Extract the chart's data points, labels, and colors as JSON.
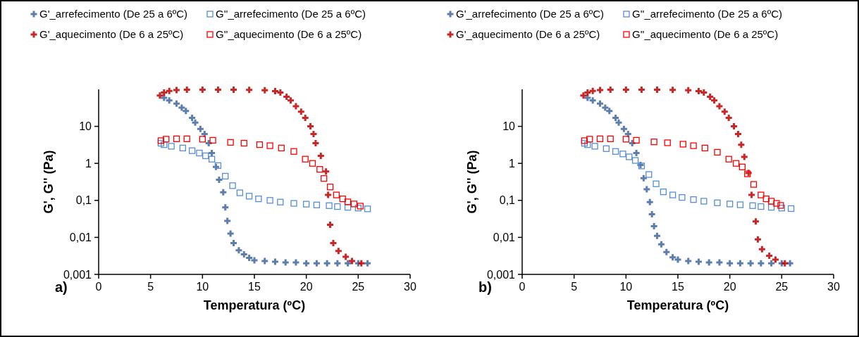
{
  "chart_data": [
    {
      "type": "scatter",
      "xlabel": "Temperatura (ºC)",
      "ylabel": "G', G'' (Pa)",
      "log": "y",
      "xlim": [
        0,
        30
      ],
      "xticks": [
        0,
        5,
        10,
        15,
        20,
        25,
        30
      ],
      "ylim": [
        0.001,
        100
      ],
      "yticks": [
        {
          "value": 0.001,
          "label": "0,001"
        },
        {
          "value": 0.01,
          "label": "0,01"
        },
        {
          "value": 0.1,
          "label": "0,1"
        },
        {
          "value": 1,
          "label": "1"
        },
        {
          "value": 10,
          "label": "10"
        }
      ],
      "grid": false,
      "legend": "top",
      "annotations": [
        "a)"
      ],
      "series": [
        {
          "name": "G'_arrefecimento (De 25 a 6ºC)",
          "color": "#41679f",
          "marker": "cross",
          "x": [
            6.3,
            6.8,
            7.5,
            8.0,
            8.4,
            9.0,
            9.3,
            9.8,
            10.2,
            10.6,
            10.9,
            11.3,
            11.6,
            12.0,
            12.2,
            12.4,
            12.7,
            13.0,
            13.5,
            14.0,
            14.5,
            15,
            16,
            17,
            18,
            19,
            20,
            21,
            22,
            23,
            24,
            25,
            25.9
          ],
          "values": [
            59,
            50,
            41,
            32,
            26,
            17,
            12.7,
            8.5,
            6.2,
            3.5,
            1.9,
            0.8,
            0.36,
            0.166,
            0.065,
            0.028,
            0.0126,
            0.007,
            0.0045,
            0.0035,
            0.0028,
            0.0024,
            0.0023,
            0.0022,
            0.0021,
            0.0021,
            0.002,
            0.002,
            0.002,
            0.002,
            0.002,
            0.002,
            0.002
          ]
        },
        {
          "name": "G''_arrefecimento (De 25 a 6ºC)",
          "color": "#558ed5",
          "marker": "square",
          "x": [
            6.0,
            6.3,
            7,
            8.1,
            9,
            9.7,
            10.3,
            10.9,
            11.5,
            12.2,
            12.9,
            13.6,
            14.5,
            15.4,
            16.5,
            17.5,
            18.8,
            20,
            21,
            22.2,
            23,
            24,
            25,
            25.9
          ],
          "values": [
            3.5,
            3.2,
            2.9,
            2.6,
            2.2,
            1.9,
            1.6,
            1.3,
            0.87,
            0.45,
            0.25,
            0.16,
            0.13,
            0.11,
            0.1,
            0.09,
            0.083,
            0.079,
            0.075,
            0.072,
            0.068,
            0.065,
            0.062,
            0.059
          ]
        },
        {
          "name": "G'_aquecimento (De 6 a 25ºC)",
          "color": "#c00000",
          "marker": "cross",
          "x": [
            5.9,
            6.3,
            6.8,
            7.5,
            8.5,
            10,
            11.5,
            13,
            14.5,
            16,
            17,
            17.5,
            18.1,
            18.5,
            19.0,
            19.5,
            19.9,
            20.4,
            20.7,
            20.9,
            21.4,
            21.9,
            22.1,
            22.3,
            22.6,
            23.1,
            23.8,
            24.4,
            25.3
          ],
          "values": [
            68,
            82,
            91,
            96,
            98,
            98,
            98,
            98,
            97,
            95,
            90,
            82,
            63,
            50,
            35,
            25,
            17,
            10,
            6.2,
            3.5,
            1.6,
            0.6,
            0.14,
            0.022,
            0.007,
            0.0043,
            0.003,
            0.0023,
            0.002
          ]
        },
        {
          "name": "G''_aquecimento (De 6 a 25ºC)",
          "color": "#ff0000",
          "marker": "square",
          "x": [
            6.0,
            6.5,
            7.5,
            8.5,
            10,
            11,
            12.7,
            14,
            15.5,
            16.5,
            17.6,
            18.8,
            19.9,
            20.6,
            21.3,
            21.7,
            22.3,
            22.9,
            23.5,
            24.0,
            24.6,
            25.2
          ],
          "values": [
            4.1,
            4.5,
            4.6,
            4.6,
            4.5,
            4.2,
            3.7,
            3.5,
            3.2,
            3.0,
            2.6,
            2.1,
            1.3,
            1.0,
            0.69,
            0.39,
            0.23,
            0.14,
            0.11,
            0.091,
            0.08,
            0.07
          ]
        }
      ]
    },
    {
      "type": "scatter",
      "xlabel": "Temperatura (ºC)",
      "ylabel": "G', G'' (Pa)",
      "log": "y",
      "xlim": [
        0,
        30
      ],
      "xticks": [
        0,
        5,
        10,
        15,
        20,
        25,
        30
      ],
      "ylim": [
        0.001,
        100
      ],
      "yticks": [
        {
          "value": 0.001,
          "label": "0,001"
        },
        {
          "value": 0.01,
          "label": "0,01"
        },
        {
          "value": 0.1,
          "label": "0,1"
        },
        {
          "value": 1,
          "label": "1"
        },
        {
          "value": 10,
          "label": "10"
        }
      ],
      "grid": false,
      "legend": "top",
      "annotations": [
        "b)"
      ],
      "series": [
        {
          "name": "G'_arrefecimento (De 25 a 6ºC)",
          "color": "#41679f",
          "marker": "cross",
          "x": [
            6.3,
            6.8,
            7.5,
            8.0,
            8.4,
            9.0,
            9.3,
            9.8,
            10.2,
            10.6,
            11.0,
            11.4,
            11.7,
            12.0,
            12.3,
            12.5,
            12.7,
            13.0,
            13.4,
            13.9,
            14.5,
            15,
            16,
            17,
            18,
            19,
            20,
            21,
            22,
            23,
            24,
            25,
            25.8
          ],
          "values": [
            59,
            50,
            41,
            32,
            26,
            17,
            12.7,
            8.5,
            6.2,
            3.5,
            1.9,
            0.9,
            0.4,
            0.2,
            0.09,
            0.042,
            0.02,
            0.011,
            0.0065,
            0.004,
            0.0029,
            0.0025,
            0.0023,
            0.0022,
            0.0021,
            0.0021,
            0.002,
            0.002,
            0.002,
            0.002,
            0.002,
            0.002,
            0.002
          ]
        },
        {
          "name": "G''_arrefecimento (De 25 a 6ºC)",
          "color": "#558ed5",
          "marker": "square",
          "x": [
            6.0,
            6.3,
            7,
            8.1,
            9,
            9.7,
            10.3,
            10.9,
            11.5,
            12.2,
            12.9,
            13.6,
            14.5,
            15.4,
            16.5,
            17.5,
            18.8,
            20,
            21,
            22.2,
            23,
            24,
            25,
            25.9
          ],
          "values": [
            3.5,
            3.2,
            2.9,
            2.5,
            2.1,
            1.8,
            1.5,
            1.2,
            0.85,
            0.5,
            0.28,
            0.17,
            0.14,
            0.12,
            0.105,
            0.095,
            0.086,
            0.08,
            0.076,
            0.072,
            0.068,
            0.065,
            0.062,
            0.06
          ]
        },
        {
          "name": "G'_aquecimento (De 6 a 25ºC)",
          "color": "#c00000",
          "marker": "cross",
          "x": [
            5.9,
            6.3,
            6.8,
            7.5,
            8.5,
            10,
            11.5,
            13,
            14.5,
            16,
            17,
            17.5,
            18.1,
            18.5,
            19.0,
            19.5,
            19.9,
            20.4,
            20.8,
            21.1,
            21.4,
            21.8,
            22.1,
            22.5,
            22.7,
            23.1,
            23.8,
            24.4,
            25.3
          ],
          "values": [
            68,
            82,
            91,
            96,
            98,
            98,
            98,
            98,
            97,
            95,
            90,
            82,
            63,
            50,
            35,
            25,
            17,
            10,
            6.2,
            3.2,
            1.5,
            0.55,
            0.14,
            0.027,
            0.0088,
            0.0048,
            0.0032,
            0.0025,
            0.002
          ]
        },
        {
          "name": "G''_aquecimento (De 6 a 25ºC)",
          "color": "#ff0000",
          "marker": "square",
          "x": [
            6.0,
            6.5,
            7.5,
            8.5,
            10,
            11,
            12.7,
            14,
            15.5,
            16.5,
            17.6,
            18.8,
            19.9,
            20.6,
            21.2,
            21.7,
            22.3,
            23.0,
            23.5,
            24.0,
            24.5,
            24.9
          ],
          "values": [
            4.1,
            4.5,
            4.6,
            4.6,
            4.5,
            4.2,
            3.8,
            3.6,
            3.3,
            3.0,
            2.6,
            2.0,
            1.3,
            1.0,
            0.8,
            0.52,
            0.27,
            0.14,
            0.11,
            0.095,
            0.083,
            0.073
          ]
        }
      ]
    }
  ]
}
